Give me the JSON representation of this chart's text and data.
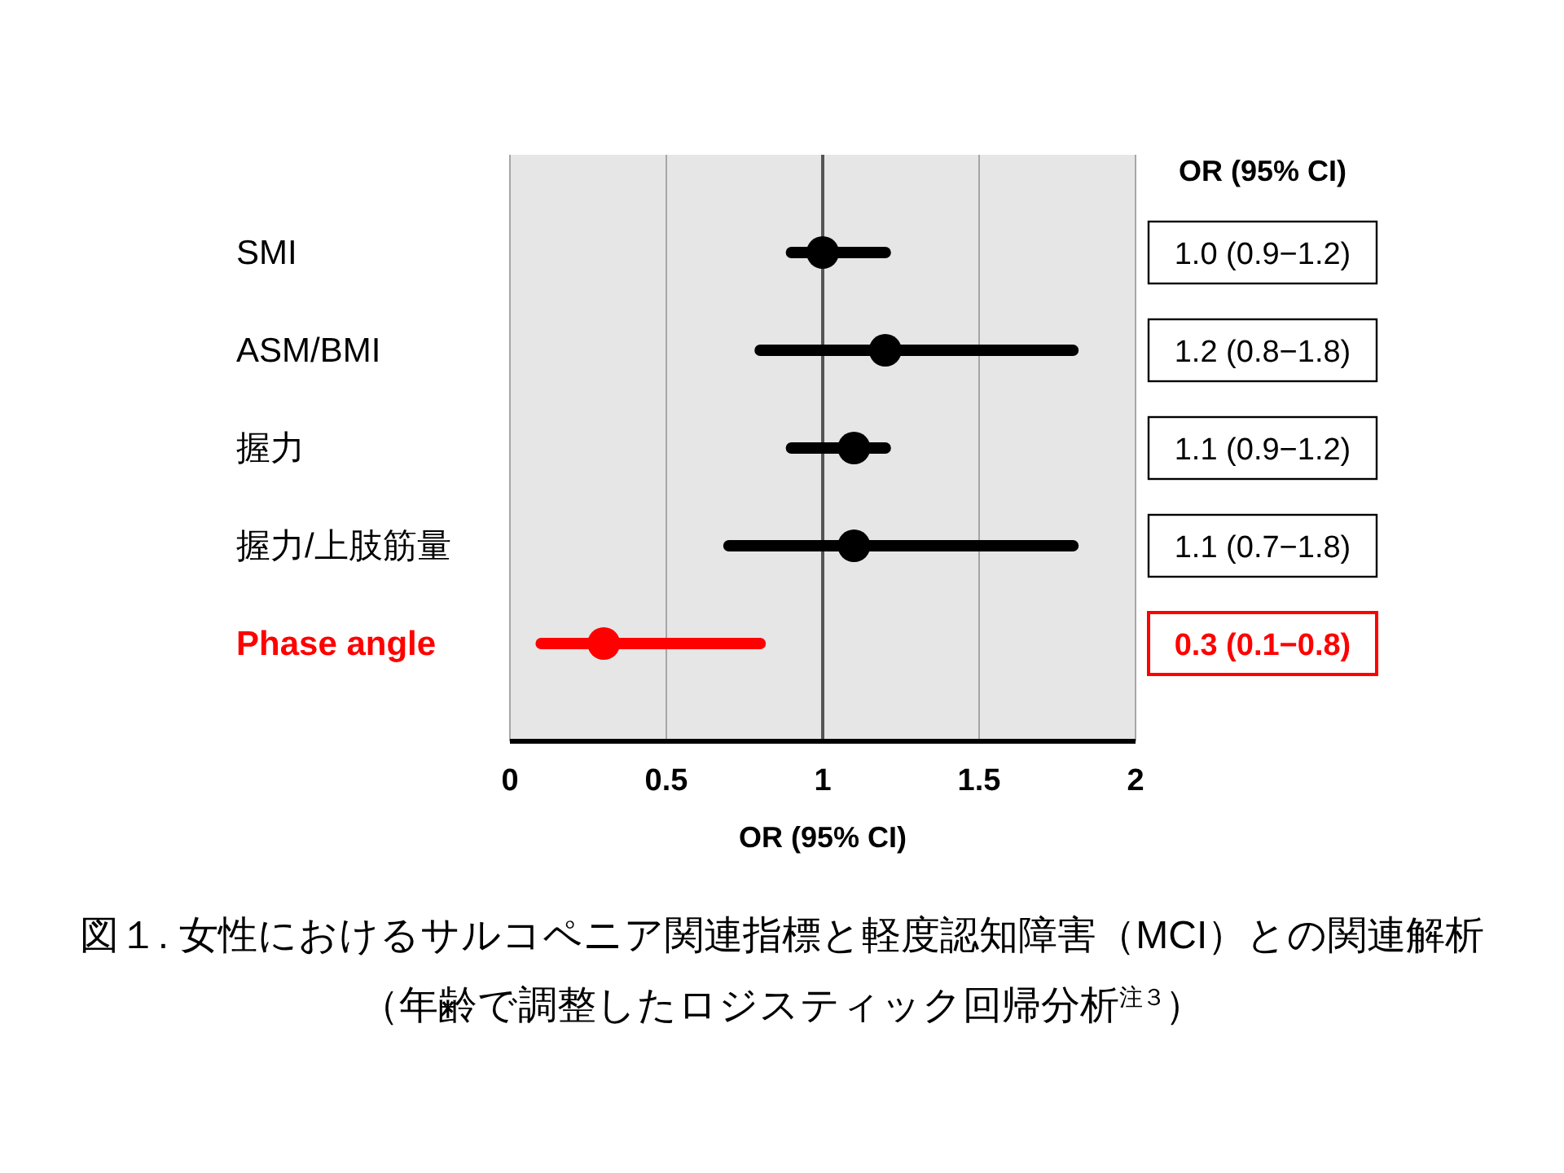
{
  "chart_data": {
    "type": "scatter",
    "orientation": "horizontal",
    "marker": "circle",
    "title": "図１. 女性におけるサルコペニア関連指標と軽度認知障害（MCI）との関連解析",
    "subtitle": "（年齢で調整したロジスティック回帰分析$^{注３}$）",
    "xlabel": "OR (95% CI)",
    "annotations": [
      "OR (95% CI)"
    ],
    "categories": [
      "SMI",
      "ASM/BMI",
      "握力",
      "握力/上肢筋量",
      "Phase angle"
    ],
    "values": [
      1.0,
      1.2,
      1.1,
      1.1,
      0.3
    ],
    "errors": [
      [
        0.9,
        1.2
      ],
      [
        0.8,
        1.8
      ],
      [
        0.9,
        1.2
      ],
      [
        0.7,
        1.8
      ],
      [
        0.1,
        0.8
      ]
    ],
    "value_labels": [
      "1.0 (0.9−1.2)",
      "1.2 (0.8−1.8)",
      "1.1 (0.9−1.2)",
      "1.1 (0.7−1.8)",
      "0.3 (0.1−0.8)"
    ],
    "colors": [
      "#000000",
      "#000000",
      "#000000",
      "#000000",
      "#ff0000"
    ],
    "xlim": [
      0,
      2
    ],
    "xticks": [
      0,
      0.5,
      1,
      1.5,
      2
    ],
    "grid": "x",
    "ref_lines": [
      {
        "axis": "x",
        "value": 1,
        "color": "#555555"
      }
    ]
  }
}
